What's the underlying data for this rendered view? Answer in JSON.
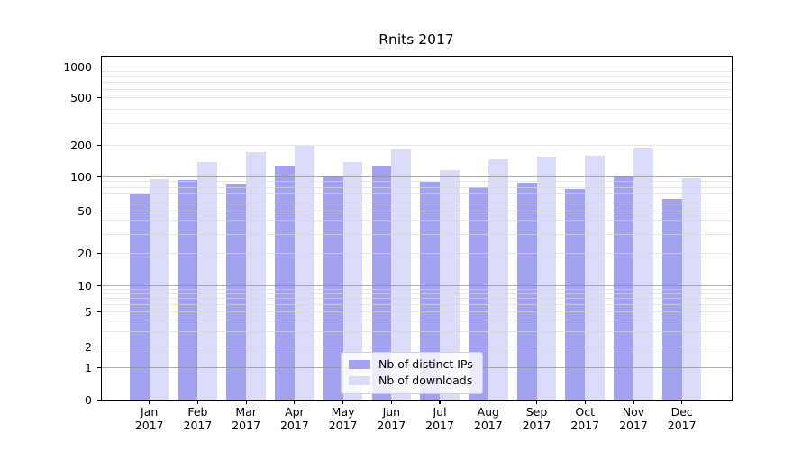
{
  "chart_data": {
    "type": "bar",
    "title": "Rnits 2017",
    "grid": true,
    "legend_position": "lower center",
    "y_axis": {
      "scale": "symlog",
      "ylim": [
        0,
        1000
      ],
      "tick_values": [
        0,
        1,
        2,
        5,
        10,
        20,
        50,
        100,
        200,
        500,
        1000
      ],
      "tick_labels": [
        "0",
        "1",
        "2",
        "5",
        "10",
        "20",
        "50",
        "100",
        "200",
        "500",
        "1000"
      ],
      "grid_major_values": [
        1,
        10,
        100,
        1000
      ],
      "grid_minor_values": [
        2,
        3,
        4,
        5,
        6,
        7,
        8,
        9,
        20,
        30,
        40,
        50,
        60,
        70,
        80,
        90,
        200,
        300,
        400,
        500,
        600,
        700,
        800,
        900
      ]
    },
    "categories": [
      "Jan 2017",
      "Feb 2017",
      "Mar 2017",
      "Apr 2017",
      "May 2017",
      "Jun 2017",
      "Jul 2017",
      "Aug 2017",
      "Sep 2017",
      "Oct 2017",
      "Nov 2017",
      "Dec 2017"
    ],
    "x_tick_labels": [
      {
        "month": "Jan",
        "year": "2017"
      },
      {
        "month": "Feb",
        "year": "2017"
      },
      {
        "month": "Mar",
        "year": "2017"
      },
      {
        "month": "Apr",
        "year": "2017"
      },
      {
        "month": "May",
        "year": "2017"
      },
      {
        "month": "Jun",
        "year": "2017"
      },
      {
        "month": "Jul",
        "year": "2017"
      },
      {
        "month": "Aug",
        "year": "2017"
      },
      {
        "month": "Sep",
        "year": "2017"
      },
      {
        "month": "Oct",
        "year": "2017"
      },
      {
        "month": "Nov",
        "year": "2017"
      },
      {
        "month": "Dec",
        "year": "2017"
      }
    ],
    "series": [
      {
        "name": "Nb of distinct IPs",
        "color": "#a2a2f0",
        "values": [
          70,
          93,
          85,
          126,
          100,
          127,
          90,
          81,
          88,
          78,
          100,
          64
        ]
      },
      {
        "name": "Nb of downloads",
        "color": "#dbdbfa",
        "values": [
          95,
          137,
          172,
          196,
          138,
          180,
          115,
          146,
          154,
          158,
          186,
          97
        ]
      }
    ]
  },
  "colors": {
    "background": "#ffffff",
    "axis": "#000000",
    "text": "#000000",
    "grid_major": "#8f8f8f",
    "grid_minor": "#d9d9d9"
  }
}
